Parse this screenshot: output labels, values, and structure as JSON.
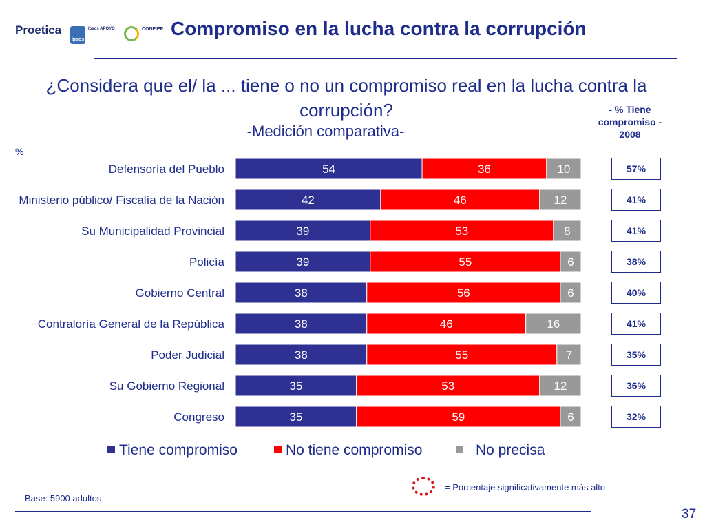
{
  "header": {
    "logo_proetica": "Proetica",
    "logo_ipsos": "Ipsos",
    "logo_apoyo": "Ipsos APOYO",
    "logo_confiep": "CONFIEP",
    "title": "Compromiso en la lucha contra la corrupción"
  },
  "question": "¿Considera que el/ la ... tiene o no un compromiso real en la lucha contra la corrupción?",
  "subtitle": "-Medición comparativa-",
  "column_header": "- % Tiene compromiso - 2008",
  "unit": "%",
  "colors": {
    "tiene": "#2e3192",
    "no_tiene": "#ff0000",
    "no_precisa": "#999999",
    "text": "#1e2c8c"
  },
  "chart_data": {
    "type": "bar",
    "orientation": "horizontal",
    "stacked": true,
    "categories": [
      "Defensoría del Pueblo",
      "Ministerio público/ Fiscalía de la Nación",
      "Su Municipalidad Provincial",
      "Policía",
      "Gobierno Central",
      "Contraloría General de la República",
      "Poder Judicial",
      "Su Gobierno Regional",
      "Congreso"
    ],
    "series": [
      {
        "name": "Tiene compromiso",
        "values": [
          54,
          42,
          39,
          39,
          38,
          38,
          38,
          35,
          35
        ]
      },
      {
        "name": "No tiene compromiso",
        "values": [
          36,
          46,
          53,
          55,
          56,
          46,
          55,
          53,
          59
        ]
      },
      {
        "name": "No precisa",
        "values": [
          10,
          12,
          8,
          6,
          6,
          16,
          7,
          12,
          6
        ]
      }
    ],
    "comparison_2008": [
      "57%",
      "41%",
      "41%",
      "38%",
      "40%",
      "41%",
      "35%",
      "36%",
      "32%"
    ],
    "xlim": [
      0,
      100
    ],
    "legend_position": "bottom"
  },
  "legend": {
    "tiene": "Tiene compromiso",
    "no_tiene": "No tiene compromiso",
    "no_precisa": "No precisa"
  },
  "significance_note": "= Porcentaje significativamente más alto",
  "base": "Base: 5900 adultos",
  "page_number": "37"
}
